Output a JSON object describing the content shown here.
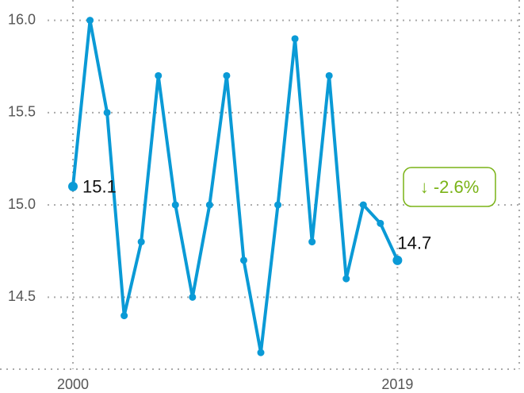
{
  "chart_data": {
    "type": "line",
    "x": [
      2000,
      2001,
      2002,
      2003,
      2004,
      2005,
      2006,
      2007,
      2008,
      2009,
      2010,
      2011,
      2012,
      2013,
      2014,
      2015,
      2016,
      2017,
      2018,
      2019
    ],
    "series": [
      {
        "color": "#0a9ad6",
        "values": [
          15.1,
          16.0,
          15.5,
          14.4,
          14.8,
          15.7,
          15.0,
          14.5,
          15.0,
          15.7,
          14.7,
          14.2,
          15.0,
          15.9,
          14.8,
          15.7,
          14.6,
          15.0,
          14.9,
          14.7
        ]
      }
    ],
    "xlim": [
      1995.73,
      2026.13
    ],
    "xticks": [
      2000,
      2019
    ],
    "ylim": [
      14.11,
      16.11
    ],
    "yticks": [
      14.5,
      {
        "value": 15,
        "label": "15.0"
      },
      15.5,
      {
        "value": 16,
        "label": "16.0"
      }
    ],
    "grid": true,
    "annotation": "↓ -2.6%",
    "annotation_color": "#7ab317"
  }
}
